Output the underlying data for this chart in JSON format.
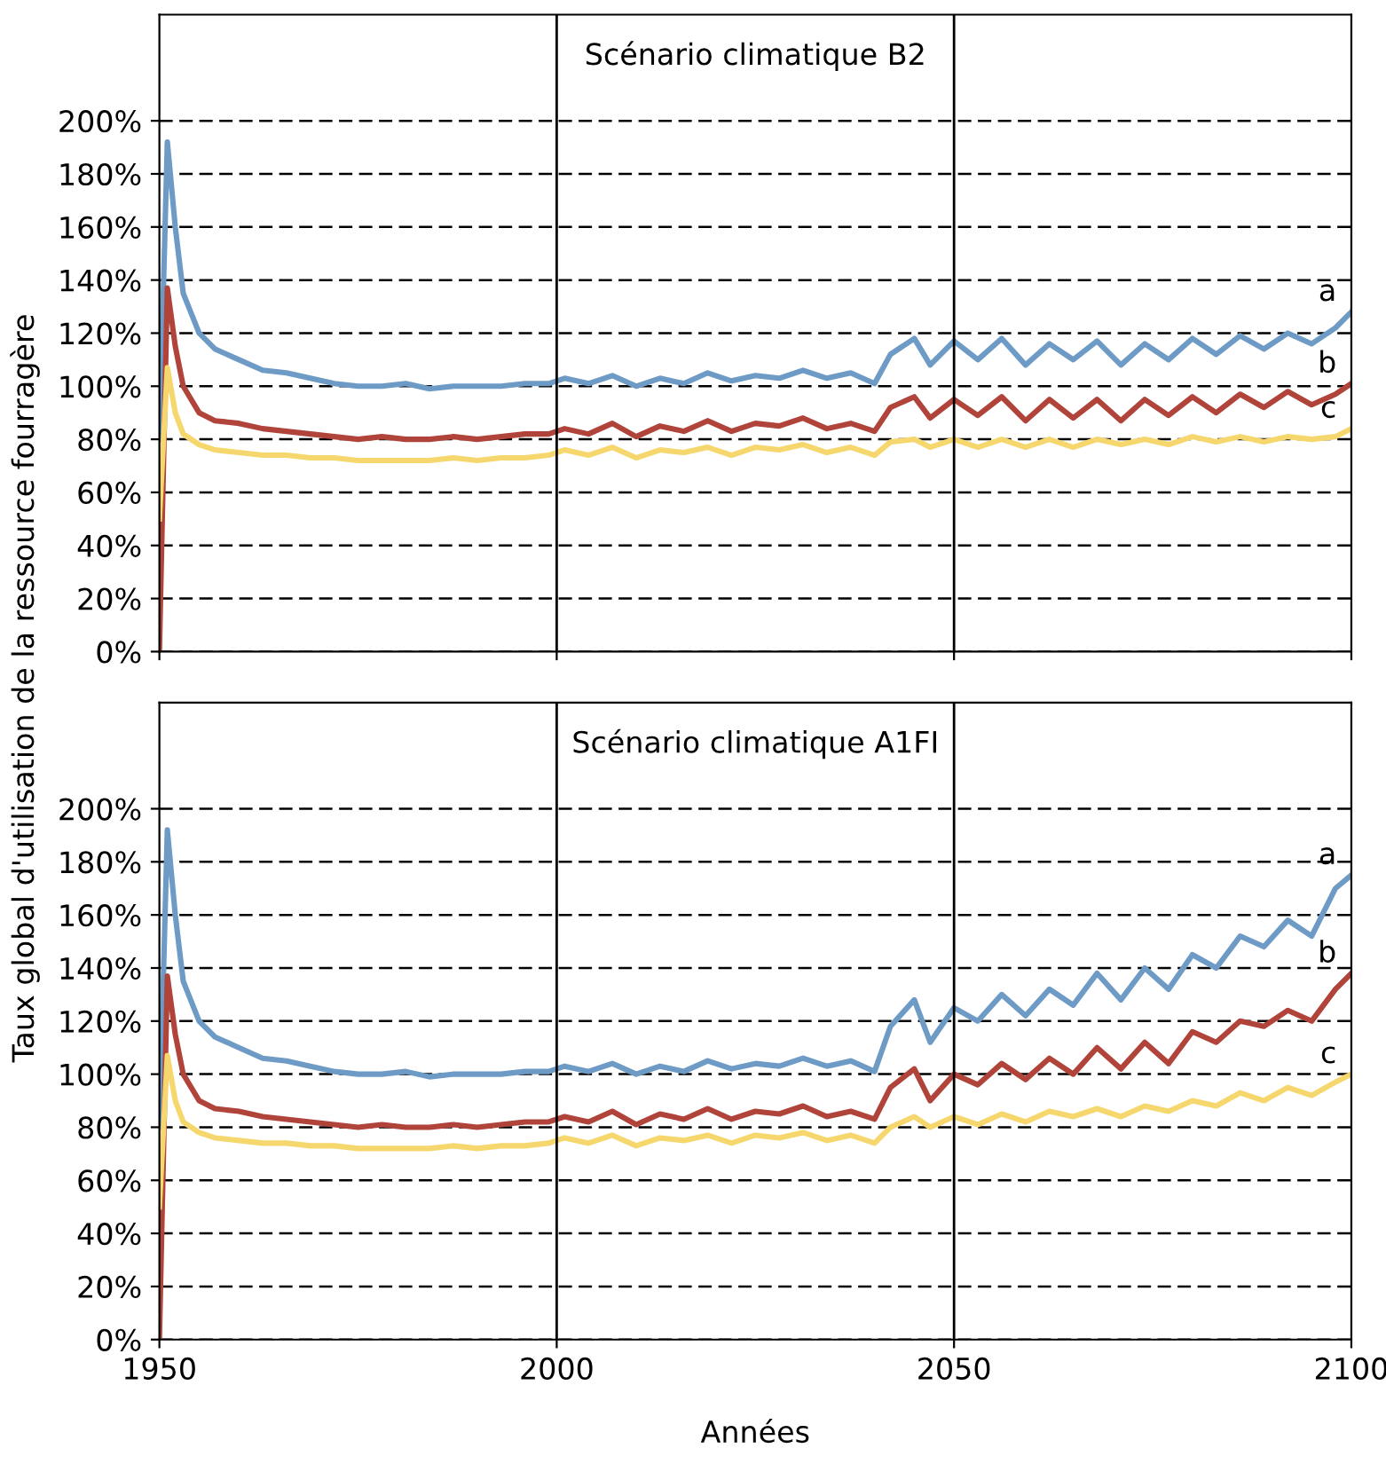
{
  "chart_data": [
    {
      "type": "line",
      "title": "Scénario climatique B2",
      "ylabel": "Taux global d'utilisation de la ressource fourragère",
      "x": [
        1950,
        1951,
        1952,
        1953,
        1955,
        1957,
        1960,
        1963,
        1966,
        1969,
        1972,
        1975,
        1978,
        1981,
        1984,
        1987,
        1990,
        1993,
        1996,
        1999,
        2001,
        2004,
        2007,
        2010,
        2013,
        2016,
        2019,
        2022,
        2025,
        2028,
        2031,
        2034,
        2037,
        2040,
        2042,
        2045,
        2047,
        2050,
        2053,
        2056,
        2059,
        2062,
        2065,
        2068,
        2071,
        2074,
        2077,
        2080,
        2083,
        2086,
        2089,
        2092,
        2095,
        2098,
        2100
      ],
      "series": [
        {
          "name": "a",
          "color": "#6d9bc5",
          "values": [
            80,
            192,
            160,
            135,
            120,
            114,
            110,
            106,
            105,
            103,
            101,
            100,
            100,
            101,
            99,
            100,
            100,
            100,
            101,
            101,
            103,
            101,
            104,
            100,
            103,
            101,
            105,
            102,
            104,
            103,
            106,
            103,
            105,
            101,
            112,
            118,
            108,
            117,
            110,
            118,
            108,
            116,
            110,
            117,
            108,
            116,
            110,
            118,
            112,
            119,
            114,
            120,
            116,
            122,
            128
          ]
        },
        {
          "name": "b",
          "color": "#b0443a",
          "values": [
            0,
            137,
            115,
            100,
            90,
            87,
            86,
            84,
            83,
            82,
            81,
            80,
            81,
            80,
            80,
            81,
            80,
            81,
            82,
            82,
            84,
            82,
            86,
            81,
            85,
            83,
            87,
            83,
            86,
            85,
            88,
            84,
            86,
            83,
            92,
            96,
            88,
            95,
            89,
            96,
            87,
            95,
            88,
            95,
            87,
            95,
            89,
            96,
            90,
            97,
            92,
            98,
            93,
            97,
            101
          ]
        },
        {
          "name": "c",
          "color": "#f5d76e",
          "values": [
            50,
            107,
            90,
            82,
            78,
            76,
            75,
            74,
            74,
            73,
            73,
            72,
            72,
            72,
            72,
            73,
            72,
            73,
            73,
            74,
            76,
            74,
            77,
            73,
            76,
            75,
            77,
            74,
            77,
            76,
            78,
            75,
            77,
            74,
            79,
            80,
            77,
            80,
            77,
            80,
            77,
            80,
            77,
            80,
            78,
            80,
            78,
            81,
            79,
            81,
            79,
            81,
            80,
            81,
            84
          ]
        }
      ],
      "xlim": [
        1950,
        2100
      ],
      "xticks": [
        1950,
        2000,
        2050,
        2100
      ],
      "ylim": [
        0,
        240
      ],
      "yticks": [
        {
          "value": 0,
          "label": "0%"
        },
        {
          "value": 20,
          "label": "20%"
        },
        {
          "value": 40,
          "label": "40%"
        },
        {
          "value": 60,
          "label": "60%"
        },
        {
          "value": 80,
          "label": "80%"
        },
        {
          "value": 100,
          "label": "100%"
        },
        {
          "value": 120,
          "label": "120%"
        },
        {
          "value": 140,
          "label": "140%"
        },
        {
          "value": 160,
          "label": "160%"
        },
        {
          "value": 180,
          "label": "180%"
        },
        {
          "value": 200,
          "label": "200%"
        }
      ],
      "grid": "y",
      "legend": false,
      "tick_labels": "y",
      "ref_lines": [
        {
          "axis": "x",
          "value": 2000,
          "color": "#000000"
        },
        {
          "axis": "x",
          "value": 2050,
          "color": "#000000"
        }
      ]
    },
    {
      "type": "line",
      "title": "Scénario climatique A1FI",
      "xlabel": "Années",
      "x": [
        1950,
        1951,
        1952,
        1953,
        1955,
        1957,
        1960,
        1963,
        1966,
        1969,
        1972,
        1975,
        1978,
        1981,
        1984,
        1987,
        1990,
        1993,
        1996,
        1999,
        2001,
        2004,
        2007,
        2010,
        2013,
        2016,
        2019,
        2022,
        2025,
        2028,
        2031,
        2034,
        2037,
        2040,
        2042,
        2045,
        2047,
        2050,
        2053,
        2056,
        2059,
        2062,
        2065,
        2068,
        2071,
        2074,
        2077,
        2080,
        2083,
        2086,
        2089,
        2092,
        2095,
        2098,
        2100
      ],
      "series": [
        {
          "name": "a",
          "color": "#6d9bc5",
          "values": [
            80,
            192,
            160,
            135,
            120,
            114,
            110,
            106,
            105,
            103,
            101,
            100,
            100,
            101,
            99,
            100,
            100,
            100,
            101,
            101,
            103,
            101,
            104,
            100,
            103,
            101,
            105,
            102,
            104,
            103,
            106,
            103,
            105,
            101,
            118,
            128,
            112,
            125,
            120,
            130,
            122,
            132,
            126,
            138,
            128,
            140,
            132,
            145,
            140,
            152,
            148,
            158,
            152,
            170,
            175
          ]
        },
        {
          "name": "b",
          "color": "#b0443a",
          "values": [
            0,
            137,
            115,
            100,
            90,
            87,
            86,
            84,
            83,
            82,
            81,
            80,
            81,
            80,
            80,
            81,
            80,
            81,
            82,
            82,
            84,
            82,
            86,
            81,
            85,
            83,
            87,
            83,
            86,
            85,
            88,
            84,
            86,
            83,
            95,
            102,
            90,
            100,
            96,
            104,
            98,
            106,
            100,
            110,
            102,
            112,
            104,
            116,
            112,
            120,
            118,
            124,
            120,
            132,
            138
          ]
        },
        {
          "name": "c",
          "color": "#f5d76e",
          "values": [
            50,
            107,
            90,
            82,
            78,
            76,
            75,
            74,
            74,
            73,
            73,
            72,
            72,
            72,
            72,
            73,
            72,
            73,
            73,
            74,
            76,
            74,
            77,
            73,
            76,
            75,
            77,
            74,
            77,
            76,
            78,
            75,
            77,
            74,
            80,
            84,
            80,
            84,
            81,
            85,
            82,
            86,
            84,
            87,
            84,
            88,
            86,
            90,
            88,
            93,
            90,
            95,
            92,
            97,
            100
          ]
        }
      ],
      "xlim": [
        1950,
        2100
      ],
      "xticks": [
        1950,
        2000,
        2050,
        2100
      ],
      "ylim": [
        0,
        240
      ],
      "yticks": [
        {
          "value": 0,
          "label": "0%"
        },
        {
          "value": 20,
          "label": "20%"
        },
        {
          "value": 40,
          "label": "40%"
        },
        {
          "value": 60,
          "label": "60%"
        },
        {
          "value": 80,
          "label": "80%"
        },
        {
          "value": 100,
          "label": "100%"
        },
        {
          "value": 120,
          "label": "120%"
        },
        {
          "value": 140,
          "label": "140%"
        },
        {
          "value": 160,
          "label": "160%"
        },
        {
          "value": 180,
          "label": "180%"
        },
        {
          "value": 200,
          "label": "200%"
        }
      ],
      "grid": "y",
      "legend": false,
      "ref_lines": [
        {
          "axis": "x",
          "value": 2000,
          "color": "#000000"
        },
        {
          "axis": "x",
          "value": 2050,
          "color": "#000000"
        }
      ]
    }
  ]
}
